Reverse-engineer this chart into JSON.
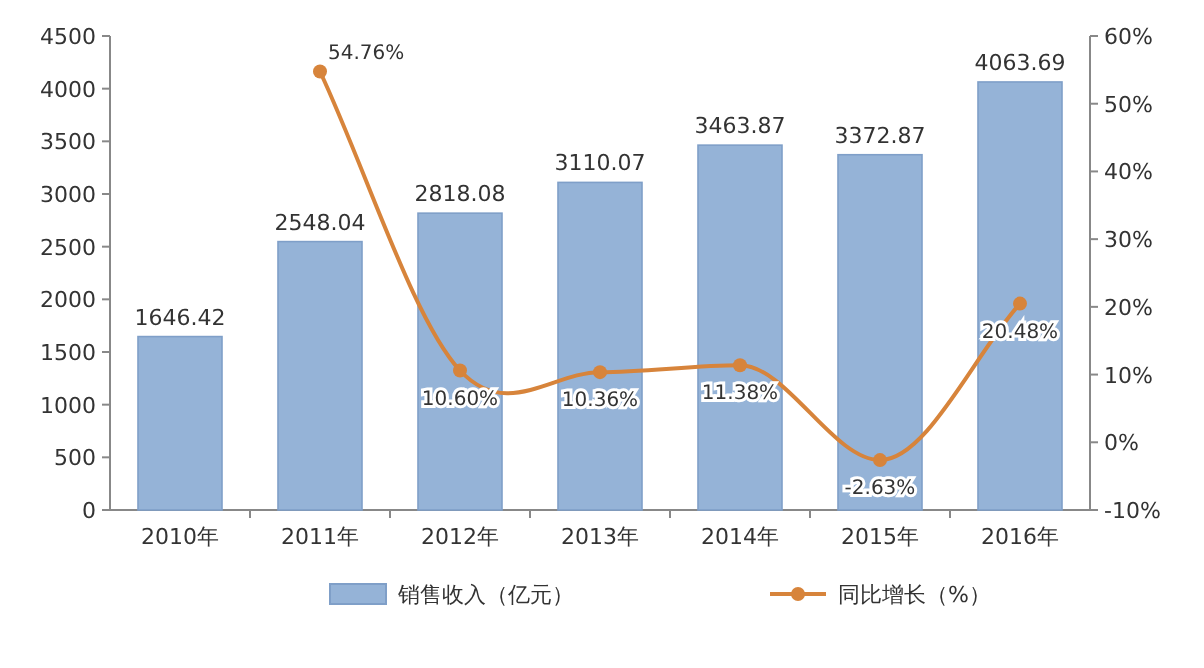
{
  "chart_data": {
    "type": "bar",
    "categories": [
      "2010年",
      "2011年",
      "2012年",
      "2013年",
      "2014年",
      "2015年",
      "2016年"
    ],
    "series": [
      {
        "name": "销售收入（亿元）",
        "color": "#95b3d7",
        "values": [
          1646.42,
          2548.04,
          2818.08,
          3110.07,
          3463.87,
          3372.87,
          4063.69
        ]
      },
      {
        "name": "同比增长（%）",
        "type": "line",
        "axis": "y2",
        "color": "#d7843b",
        "marker": "circle",
        "values": [
          null,
          54.76,
          10.6,
          10.36,
          11.38,
          -2.63,
          20.48
        ],
        "value_labels": [
          null,
          "54.76%",
          "10.60%",
          "10.36%",
          "11.38%",
          "-2.63%",
          "20.48%"
        ]
      }
    ],
    "data_labels": true,
    "ylim": [
      0,
      4500
    ],
    "yticks": [
      0,
      500,
      1000,
      1500,
      2000,
      2500,
      3000,
      3500,
      4000,
      4500
    ],
    "y2lim": [
      -10,
      60
    ],
    "y2ticks": [
      {
        "value": -10,
        "label": "-10%"
      },
      {
        "value": 0,
        "label": "0%"
      },
      {
        "value": 10,
        "label": "10%"
      },
      {
        "value": 20,
        "label": "20%"
      },
      {
        "value": 30,
        "label": "30%"
      },
      {
        "value": 40,
        "label": "40%"
      },
      {
        "value": 50,
        "label": "50%"
      },
      {
        "value": 60,
        "label": "60%"
      }
    ],
    "legend": "bottom",
    "grid": false
  }
}
